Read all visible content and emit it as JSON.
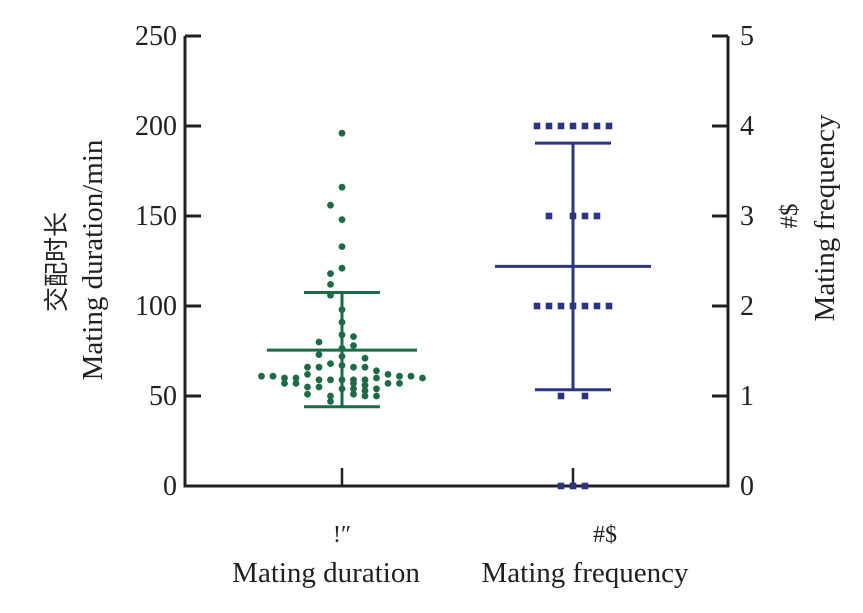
{
  "chart_data": {
    "type": "scatter",
    "title": "",
    "left_axis": {
      "label_cn": "交配时长",
      "label": "Mating duration/min",
      "ylim": [
        0,
        250
      ],
      "ticks": [
        0,
        50,
        100,
        150,
        200,
        250
      ]
    },
    "right_axis": {
      "label_cn": "#$",
      "label": "Mating frequency",
      "ylim": [
        0,
        5
      ],
      "ticks": [
        0,
        1,
        2,
        3,
        4,
        5
      ]
    },
    "categories": [
      {
        "label_cn": "!″",
        "label": "Mating duration"
      },
      {
        "label_cn": "#$",
        "label": "Mating frequency"
      }
    ],
    "series": [
      {
        "name": "Mating duration",
        "axis": "left",
        "color": "#1d6b45",
        "marker": "circle",
        "mean": 75.5,
        "sd_upper": 107.5,
        "sd_lower": 44,
        "points": [
          {
            "offset": 0,
            "y": 196
          },
          {
            "offset": 0,
            "y": 166
          },
          {
            "offset": -1,
            "y": 156
          },
          {
            "offset": 0,
            "y": 148
          },
          {
            "offset": 0,
            "y": 133
          },
          {
            "offset": 0,
            "y": 121
          },
          {
            "offset": -1,
            "y": 118
          },
          {
            "offset": -1,
            "y": 112
          },
          {
            "offset": -1,
            "y": 106
          },
          {
            "offset": 0,
            "y": 98
          },
          {
            "offset": 0,
            "y": 91
          },
          {
            "offset": 0,
            "y": 84
          },
          {
            "offset": 1,
            "y": 83
          },
          {
            "offset": -2,
            "y": 80
          },
          {
            "offset": 1,
            "y": 78
          },
          {
            "offset": 0,
            "y": 76.5
          },
          {
            "offset": -2,
            "y": 73
          },
          {
            "offset": 0,
            "y": 72
          },
          {
            "offset": 2,
            "y": 71
          },
          {
            "offset": -1,
            "y": 68
          },
          {
            "offset": 0,
            "y": 67
          },
          {
            "offset": 1,
            "y": 66
          },
          {
            "offset": 2,
            "y": 66
          },
          {
            "offset": -3,
            "y": 66
          },
          {
            "offset": -2,
            "y": 66
          },
          {
            "offset": 3,
            "y": 64
          },
          {
            "offset": -3,
            "y": 62
          },
          {
            "offset": 4,
            "y": 62
          },
          {
            "offset": -7,
            "y": 61
          },
          {
            "offset": -6,
            "y": 61
          },
          {
            "offset": -5,
            "y": 60
          },
          {
            "offset": -4,
            "y": 60
          },
          {
            "offset": -2,
            "y": 59
          },
          {
            "offset": -1,
            "y": 59
          },
          {
            "offset": 0,
            "y": 59
          },
          {
            "offset": 1,
            "y": 59
          },
          {
            "offset": 2,
            "y": 59
          },
          {
            "offset": 3,
            "y": 60
          },
          {
            "offset": 5,
            "y": 61
          },
          {
            "offset": 6,
            "y": 61
          },
          {
            "offset": 7,
            "y": 60
          },
          {
            "offset": -5,
            "y": 57
          },
          {
            "offset": -4,
            "y": 57
          },
          {
            "offset": 1,
            "y": 57
          },
          {
            "offset": 2,
            "y": 56
          },
          {
            "offset": 4,
            "y": 57
          },
          {
            "offset": 5,
            "y": 57
          },
          {
            "offset": -3,
            "y": 55
          },
          {
            "offset": -2,
            "y": 55
          },
          {
            "offset": 0,
            "y": 54
          },
          {
            "offset": 1,
            "y": 54
          },
          {
            "offset": 2,
            "y": 53
          },
          {
            "offset": 3,
            "y": 54
          },
          {
            "offset": -3,
            "y": 51
          },
          {
            "offset": 1,
            "y": 51
          },
          {
            "offset": 2,
            "y": 50
          },
          {
            "offset": 3,
            "y": 50
          },
          {
            "offset": -1,
            "y": 50
          },
          {
            "offset": -1,
            "y": 47
          }
        ]
      },
      {
        "name": "Mating frequency",
        "axis": "right",
        "color": "#2b3580",
        "marker": "square",
        "mean": 2.44,
        "sd_upper": 3.81,
        "sd_lower": 1.07,
        "points": [
          {
            "offset": -3,
            "y": 4
          },
          {
            "offset": -2,
            "y": 4
          },
          {
            "offset": -1,
            "y": 4
          },
          {
            "offset": 0,
            "y": 4
          },
          {
            "offset": 1,
            "y": 4
          },
          {
            "offset": 2,
            "y": 4
          },
          {
            "offset": 3,
            "y": 4
          },
          {
            "offset": -2,
            "y": 3
          },
          {
            "offset": 0,
            "y": 3
          },
          {
            "offset": 1,
            "y": 3
          },
          {
            "offset": 2,
            "y": 3
          },
          {
            "offset": -3,
            "y": 2
          },
          {
            "offset": -2,
            "y": 2
          },
          {
            "offset": -1,
            "y": 2
          },
          {
            "offset": 0,
            "y": 2
          },
          {
            "offset": 1,
            "y": 2
          },
          {
            "offset": 2,
            "y": 2
          },
          {
            "offset": 3,
            "y": 2
          },
          {
            "offset": -1,
            "y": 1
          },
          {
            "offset": 1,
            "y": 1
          },
          {
            "offset": -1,
            "y": 0
          },
          {
            "offset": 0,
            "y": 0
          },
          {
            "offset": 1,
            "y": 0
          }
        ]
      }
    ]
  }
}
